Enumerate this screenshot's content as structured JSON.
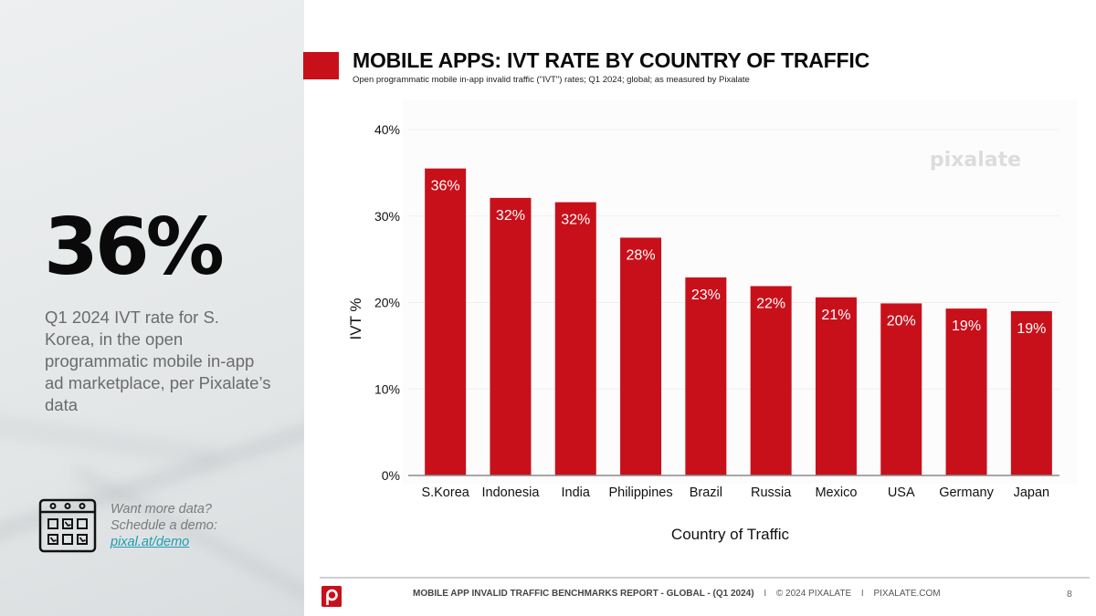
{
  "header": {
    "title": "MOBILE APPS: IVT RATE BY COUNTRY OF TRAFFIC",
    "subtitle": "Open programmatic mobile in-app invalid traffic (\"IVT\") rates; Q1 2024; global; as measured by Pixalate"
  },
  "sidebar": {
    "big_stat": "36%",
    "description": "Q1 2024 IVT rate for S. Korea, in the open programmatic mobile in-app ad marketplace, per Pixalate’s data",
    "cta": {
      "icon": "calendar-icon",
      "line1": "Want more data?",
      "line2": "Schedule a demo:",
      "link_text": "pixal.at/demo"
    }
  },
  "footer": {
    "logo": "pixalate-p-logo",
    "report": "MOBILE APP INVALID TRAFFIC BENCHMARKS REPORT - GLOBAL -  (Q1 2024)",
    "separator": "I",
    "copyright": "© 2024 PIXALATE",
    "website": "PIXALATE.COM",
    "page_number": "8"
  },
  "colors": {
    "accent": "#c8101b",
    "link": "#1f9db0"
  },
  "chart_data": {
    "type": "bar",
    "title": "",
    "xlabel": "Country of Traffic",
    "ylabel": "IVT %",
    "watermark": "pixalate",
    "categories": [
      "S.Korea",
      "Indonesia",
      "India",
      "Philippines",
      "Brazil",
      "Russia",
      "Mexico",
      "USA",
      "Germany",
      "Japan"
    ],
    "values": [
      35.5,
      32.1,
      31.6,
      27.5,
      22.9,
      21.9,
      20.6,
      19.9,
      19.3,
      19.0
    ],
    "data_labels": [
      "36%",
      "32%",
      "32%",
      "28%",
      "23%",
      "22%",
      "21%",
      "20%",
      "19%",
      "19%"
    ],
    "ylim": [
      0,
      40
    ],
    "yticks": [
      0,
      10,
      20,
      30,
      40
    ],
    "ytick_labels": [
      "0%",
      "10%",
      "20%",
      "30%",
      "40%"
    ],
    "grid": true,
    "legend": "none",
    "bar_color": "#c8101b"
  }
}
